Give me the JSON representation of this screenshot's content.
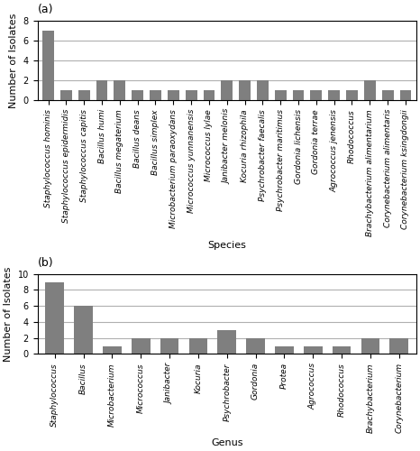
{
  "chart_data": [
    {
      "type": "bar",
      "title": "(a)",
      "categories": [
        "Staphylococcus hominis",
        "Staphylococcus epidermidis",
        "Staphylococcus capitis",
        "Bacillus humi",
        "Bacillus megaterium",
        "Bacillus deans",
        "Bacillus simplex",
        "Microbacterium paraoxydans",
        "Micrococcus yunnanensis",
        "Micrococcus lylae",
        "Janibacter melonis",
        "Kocuria rhizophila",
        "Psychrobacter faecalis",
        "Psychrobacter maritimus",
        "Gordonia lichensis",
        "Gordonia terrae",
        "Agrococcus jenensis",
        "Rhodococcus",
        "Brachybacterium alimentarium",
        "Corynebacterium alimentaris",
        "Corynebacterium ksingdongii"
      ],
      "values": [
        7,
        1,
        1,
        2,
        2,
        1,
        1,
        1,
        1,
        1,
        2,
        2,
        2,
        1,
        1,
        1,
        1,
        1,
        2,
        1,
        1
      ],
      "color": "#7f7f7f",
      "xlabel": "Species",
      "ylabel": "Number of Isolates",
      "ylim": [
        0,
        8
      ],
      "yticks": [
        0,
        2,
        4,
        6,
        8
      ],
      "grid": true
    },
    {
      "type": "bar",
      "title": "(b)",
      "categories": [
        "Staphylococcus",
        "Bacillus",
        "Microbacterium",
        "Micrococcus",
        "Janibacter",
        "Kocuria",
        "Psychrobacter",
        "Gordonia",
        "Protea",
        "Agrococcus",
        "Rhodococcus",
        "Brachybacterium",
        "Corynebacterium"
      ],
      "values": [
        9,
        6,
        1,
        2,
        2,
        2,
        3,
        2,
        1,
        1,
        1,
        2,
        2
      ],
      "color": "#7f7f7f",
      "xlabel": "Genus",
      "ylabel": "Number of Isolates",
      "ylim": [
        0,
        10
      ],
      "yticks": [
        0,
        2,
        4,
        6,
        8,
        10
      ],
      "grid": true
    }
  ]
}
